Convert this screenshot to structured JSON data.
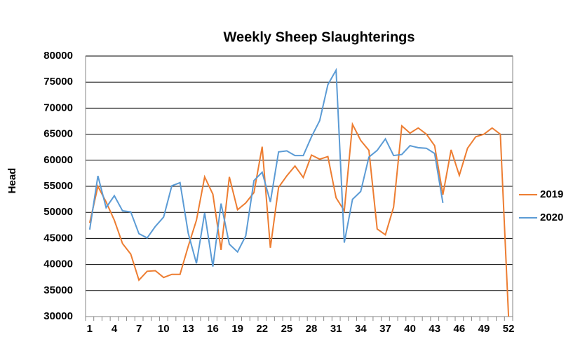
{
  "chart_data": {
    "type": "line",
    "title": "Weekly Sheep Slaughterings",
    "y_label": "Head",
    "categories": [
      1,
      null,
      null,
      4,
      null,
      null,
      7,
      null,
      null,
      10,
      null,
      null,
      13,
      null,
      null,
      16,
      null,
      null,
      19,
      null,
      null,
      22,
      null,
      null,
      25,
      null,
      null,
      28,
      null,
      null,
      31,
      null,
      null,
      34,
      null,
      null,
      37,
      null,
      null,
      40,
      null,
      null,
      43,
      null,
      null,
      46,
      null,
      null,
      49,
      null,
      null,
      52
    ],
    "series": [
      {
        "name": "2019",
        "color": "#ed7d31",
        "values": [
          48000,
          55000,
          52000,
          48500,
          44000,
          42000,
          37000,
          38700,
          38800,
          37500,
          38100,
          38100,
          43500,
          48500,
          56800,
          53500,
          42800,
          56800,
          50500,
          51800,
          53800,
          62600,
          43200,
          54800,
          57000,
          58900,
          56700,
          61000,
          60200,
          60700,
          52800,
          50300,
          66900,
          63800,
          61900,
          46800,
          45700,
          51000,
          66600,
          65200,
          66200,
          65000,
          62800,
          53400,
          62000,
          57100,
          62300,
          64500,
          65000,
          66200,
          65000,
          30000
        ]
      },
      {
        "name": "2020",
        "color": "#5b9bd5",
        "values": [
          46700,
          57000,
          50900,
          53200,
          50300,
          50100,
          45900,
          45100,
          47300,
          49100,
          55100,
          55700,
          46000,
          40200,
          49900,
          39600,
          51700,
          43900,
          42400,
          45500,
          56100,
          57700,
          52000,
          61600,
          61800,
          60900,
          60900,
          64500,
          67600,
          74500,
          77300,
          44200,
          52500,
          54000,
          60600,
          61900,
          64100,
          60900,
          61100,
          62800,
          62400,
          62300,
          61300,
          51800,
          null,
          null,
          null,
          null,
          null,
          null,
          null,
          null
        ]
      }
    ],
    "ylim": [
      30000,
      80000
    ],
    "yticks": [
      30000,
      35000,
      40000,
      45000,
      50000,
      55000,
      60000,
      65000,
      70000,
      75000,
      80000
    ],
    "grid": true,
    "legend": "right"
  }
}
